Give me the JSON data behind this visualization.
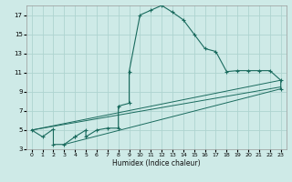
{
  "xlabel": "Humidex (Indice chaleur)",
  "xlim": [
    -0.5,
    23.5
  ],
  "ylim": [
    3,
    18
  ],
  "xticks": [
    0,
    1,
    2,
    3,
    4,
    5,
    6,
    7,
    8,
    9,
    10,
    11,
    12,
    13,
    14,
    15,
    16,
    17,
    18,
    19,
    20,
    21,
    22,
    23
  ],
  "yticks": [
    3,
    5,
    7,
    9,
    11,
    13,
    15,
    17
  ],
  "background_color": "#ceeae7",
  "grid_color": "#aed4d0",
  "line_color": "#1a6b5e",
  "curve_data": [
    [
      0,
      5.0
    ],
    [
      1,
      4.3
    ],
    [
      2,
      5.1
    ],
    [
      2,
      3.5
    ],
    [
      3,
      3.5
    ],
    [
      4,
      4.3
    ],
    [
      4,
      4.3
    ],
    [
      5,
      5.0
    ],
    [
      5,
      4.3
    ],
    [
      6,
      5.0
    ],
    [
      7,
      5.2
    ],
    [
      8,
      5.2
    ],
    [
      8,
      7.5
    ],
    [
      9,
      7.8
    ],
    [
      9,
      11.1
    ],
    [
      10,
      17.0
    ],
    [
      11,
      17.5
    ],
    [
      12,
      18.0
    ],
    [
      13,
      17.3
    ],
    [
      14,
      16.5
    ],
    [
      15,
      15.0
    ],
    [
      16,
      13.5
    ],
    [
      17,
      13.2
    ],
    [
      18,
      11.1
    ],
    [
      19,
      11.2
    ],
    [
      20,
      11.2
    ],
    [
      21,
      11.2
    ],
    [
      22,
      11.2
    ],
    [
      23,
      10.2
    ],
    [
      23,
      9.3
    ]
  ],
  "line2_data": [
    [
      0,
      5.0
    ],
    [
      23,
      9.5
    ]
  ],
  "line3_data": [
    [
      0,
      5.0
    ],
    [
      23,
      10.2
    ]
  ],
  "line4_data": [
    [
      3,
      3.5
    ],
    [
      23,
      9.3
    ]
  ]
}
